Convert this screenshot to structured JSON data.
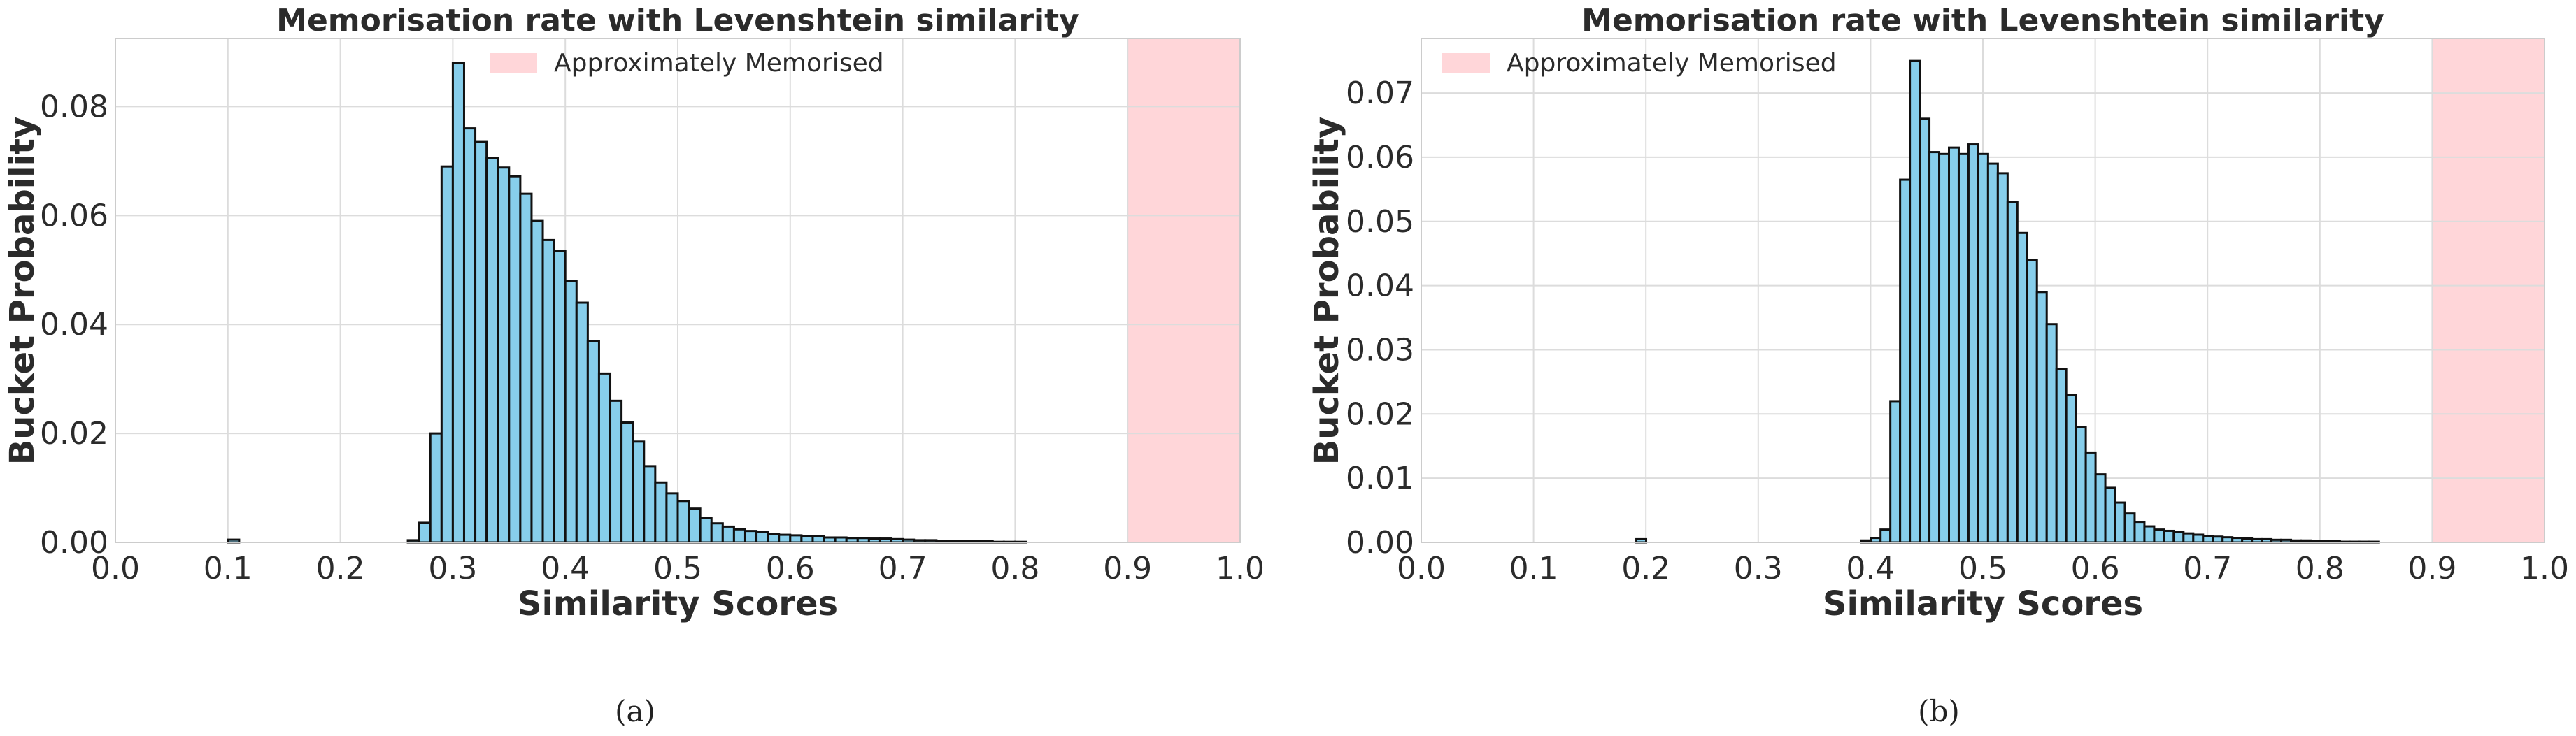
{
  "chart_data": [
    {
      "type": "bar",
      "panel_label": "(a)",
      "title": "Memorisation rate with Levenshtein similarity",
      "xlabel": "Similarity Scores",
      "ylabel": "Bucket Probability",
      "xlim": [
        0.0,
        1.0
      ],
      "ylim": [
        0.0,
        0.0925
      ],
      "xticks": [
        "0.0",
        "0.1",
        "0.2",
        "0.3",
        "0.4",
        "0.5",
        "0.6",
        "0.7",
        "0.8",
        "0.9",
        "1.0"
      ],
      "yticks": [
        "0.00",
        "0.02",
        "0.04",
        "0.06",
        "0.08"
      ],
      "ytick_values": [
        0.0,
        0.02,
        0.04,
        0.06,
        0.08
      ],
      "grid": true,
      "legend": {
        "placement": "top-center",
        "entries": [
          {
            "label": "Approximately Memorised",
            "color": "#ffd6d9"
          }
        ]
      },
      "shaded_region": {
        "label": "Approximately Memorised",
        "x": [
          0.9,
          1.0
        ],
        "color": "#ffd6d9"
      },
      "bar_color": "#87ceeb",
      "bin_width": 0.01,
      "bins": [
        {
          "x": 0.1,
          "y": 0.0005
        },
        {
          "x": 0.26,
          "y": 0.0004
        },
        {
          "x": 0.27,
          "y": 0.0036
        },
        {
          "x": 0.28,
          "y": 0.02
        },
        {
          "x": 0.29,
          "y": 0.069
        },
        {
          "x": 0.3,
          "y": 0.088
        },
        {
          "x": 0.31,
          "y": 0.076
        },
        {
          "x": 0.32,
          "y": 0.0735
        },
        {
          "x": 0.33,
          "y": 0.0705
        },
        {
          "x": 0.34,
          "y": 0.0688
        },
        {
          "x": 0.35,
          "y": 0.0672
        },
        {
          "x": 0.36,
          "y": 0.064
        },
        {
          "x": 0.37,
          "y": 0.059
        },
        {
          "x": 0.38,
          "y": 0.0555
        },
        {
          "x": 0.39,
          "y": 0.0535
        },
        {
          "x": 0.4,
          "y": 0.048
        },
        {
          "x": 0.41,
          "y": 0.044
        },
        {
          "x": 0.42,
          "y": 0.037
        },
        {
          "x": 0.43,
          "y": 0.031
        },
        {
          "x": 0.44,
          "y": 0.026
        },
        {
          "x": 0.45,
          "y": 0.022
        },
        {
          "x": 0.46,
          "y": 0.0185
        },
        {
          "x": 0.47,
          "y": 0.014
        },
        {
          "x": 0.48,
          "y": 0.011
        },
        {
          "x": 0.49,
          "y": 0.009
        },
        {
          "x": 0.5,
          "y": 0.0076
        },
        {
          "x": 0.51,
          "y": 0.0062
        },
        {
          "x": 0.52,
          "y": 0.0045
        },
        {
          "x": 0.53,
          "y": 0.0035
        },
        {
          "x": 0.54,
          "y": 0.0029
        },
        {
          "x": 0.55,
          "y": 0.0024
        },
        {
          "x": 0.56,
          "y": 0.0021
        },
        {
          "x": 0.57,
          "y": 0.0019
        },
        {
          "x": 0.58,
          "y": 0.0016
        },
        {
          "x": 0.59,
          "y": 0.0014
        },
        {
          "x": 0.6,
          "y": 0.0013
        },
        {
          "x": 0.61,
          "y": 0.0011
        },
        {
          "x": 0.62,
          "y": 0.0011
        },
        {
          "x": 0.63,
          "y": 0.0009
        },
        {
          "x": 0.64,
          "y": 0.0009
        },
        {
          "x": 0.65,
          "y": 0.0008
        },
        {
          "x": 0.66,
          "y": 0.0008
        },
        {
          "x": 0.67,
          "y": 0.0007
        },
        {
          "x": 0.68,
          "y": 0.0007
        },
        {
          "x": 0.69,
          "y": 0.0006
        },
        {
          "x": 0.7,
          "y": 0.0005
        },
        {
          "x": 0.71,
          "y": 0.0004
        },
        {
          "x": 0.72,
          "y": 0.0004
        },
        {
          "x": 0.73,
          "y": 0.0003
        },
        {
          "x": 0.74,
          "y": 0.0003
        },
        {
          "x": 0.75,
          "y": 0.0002
        },
        {
          "x": 0.76,
          "y": 0.0002
        },
        {
          "x": 0.77,
          "y": 0.0002
        },
        {
          "x": 0.78,
          "y": 0.0001
        },
        {
          "x": 0.79,
          "y": 0.0001
        },
        {
          "x": 0.8,
          "y": 0.0001
        }
      ]
    },
    {
      "type": "bar",
      "panel_label": "(b)",
      "title": "Memorisation rate with Levenshtein similarity",
      "xlabel": "Similarity Scores",
      "ylabel": "Bucket Probability",
      "xlim": [
        0.0,
        1.0
      ],
      "ylim": [
        0.0,
        0.0785
      ],
      "xticks": [
        "0.0",
        "0.1",
        "0.2",
        "0.3",
        "0.4",
        "0.5",
        "0.6",
        "0.7",
        "0.8",
        "0.9",
        "1.0"
      ],
      "yticks": [
        "0.00",
        "0.01",
        "0.02",
        "0.03",
        "0.04",
        "0.05",
        "0.06",
        "0.07"
      ],
      "ytick_values": [
        0.0,
        0.01,
        0.02,
        0.03,
        0.04,
        0.05,
        0.06,
        0.07
      ],
      "grid": true,
      "legend": {
        "placement": "top-left",
        "entries": [
          {
            "label": "Approximately Memorised",
            "color": "#ffd6d9"
          }
        ]
      },
      "shaded_region": {
        "label": "Approximately Memorised",
        "x": [
          0.9,
          1.0
        ],
        "color": "#ffd6d9"
      },
      "bar_color": "#87ceeb",
      "bin_width": 0.0087,
      "bins": [
        {
          "x": 0.1915,
          "y": 0.0005
        },
        {
          "x": 0.3915,
          "y": 0.0003
        },
        {
          "x": 0.4002,
          "y": 0.0007
        },
        {
          "x": 0.4089,
          "y": 0.002
        },
        {
          "x": 0.4176,
          "y": 0.022
        },
        {
          "x": 0.4263,
          "y": 0.0565
        },
        {
          "x": 0.435,
          "y": 0.075
        },
        {
          "x": 0.4437,
          "y": 0.066
        },
        {
          "x": 0.4524,
          "y": 0.0608
        },
        {
          "x": 0.4611,
          "y": 0.0605
        },
        {
          "x": 0.4698,
          "y": 0.0615
        },
        {
          "x": 0.4785,
          "y": 0.0605
        },
        {
          "x": 0.4872,
          "y": 0.062
        },
        {
          "x": 0.4959,
          "y": 0.0605
        },
        {
          "x": 0.5046,
          "y": 0.059
        },
        {
          "x": 0.5133,
          "y": 0.0575
        },
        {
          "x": 0.522,
          "y": 0.053
        },
        {
          "x": 0.5307,
          "y": 0.0482
        },
        {
          "x": 0.5394,
          "y": 0.044
        },
        {
          "x": 0.5481,
          "y": 0.039
        },
        {
          "x": 0.5568,
          "y": 0.034
        },
        {
          "x": 0.5655,
          "y": 0.027
        },
        {
          "x": 0.5742,
          "y": 0.023
        },
        {
          "x": 0.5829,
          "y": 0.018
        },
        {
          "x": 0.5916,
          "y": 0.014
        },
        {
          "x": 0.6003,
          "y": 0.0106
        },
        {
          "x": 0.609,
          "y": 0.0085
        },
        {
          "x": 0.6177,
          "y": 0.0062
        },
        {
          "x": 0.6264,
          "y": 0.0045
        },
        {
          "x": 0.6351,
          "y": 0.0032
        },
        {
          "x": 0.6438,
          "y": 0.0025
        },
        {
          "x": 0.6525,
          "y": 0.002
        },
        {
          "x": 0.6612,
          "y": 0.0018
        },
        {
          "x": 0.6699,
          "y": 0.0016
        },
        {
          "x": 0.6786,
          "y": 0.0014
        },
        {
          "x": 0.6873,
          "y": 0.0012
        },
        {
          "x": 0.696,
          "y": 0.001
        },
        {
          "x": 0.7047,
          "y": 0.0009
        },
        {
          "x": 0.7134,
          "y": 0.0008
        },
        {
          "x": 0.7221,
          "y": 0.0007
        },
        {
          "x": 0.7308,
          "y": 0.0006
        },
        {
          "x": 0.7395,
          "y": 0.0005
        },
        {
          "x": 0.7482,
          "y": 0.0005
        },
        {
          "x": 0.7569,
          "y": 0.0004
        },
        {
          "x": 0.7656,
          "y": 0.0004
        },
        {
          "x": 0.7743,
          "y": 0.0003
        },
        {
          "x": 0.783,
          "y": 0.0003
        },
        {
          "x": 0.7917,
          "y": 0.0002
        },
        {
          "x": 0.8004,
          "y": 0.0002
        },
        {
          "x": 0.8091,
          "y": 0.0002
        },
        {
          "x": 0.8178,
          "y": 0.0001
        },
        {
          "x": 0.8265,
          "y": 0.0001
        },
        {
          "x": 0.8352,
          "y": 0.0001
        },
        {
          "x": 0.8439,
          "y": 0.0001
        }
      ]
    }
  ]
}
